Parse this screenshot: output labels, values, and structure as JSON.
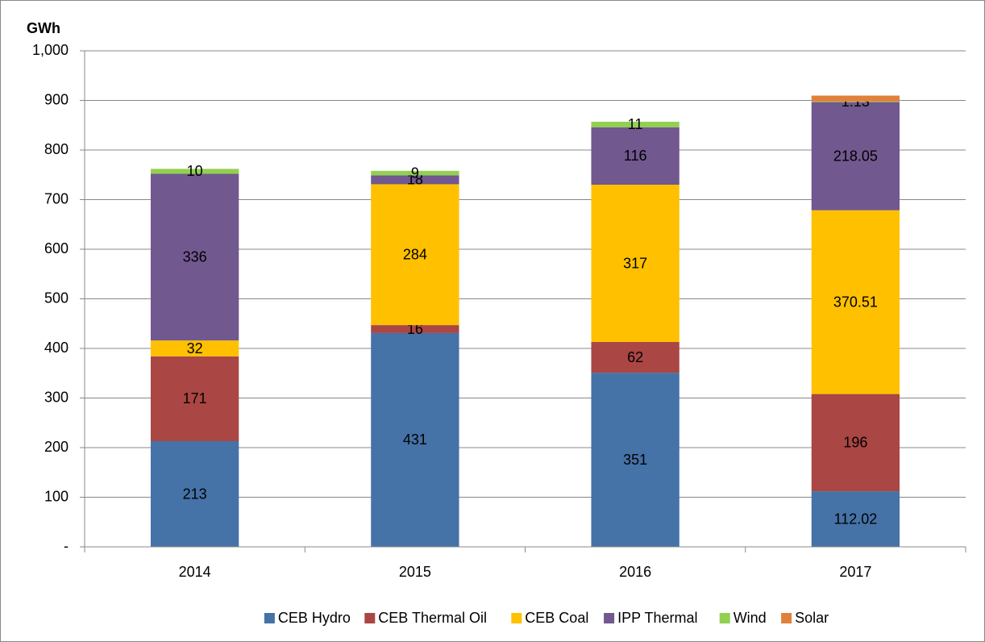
{
  "chart_data": {
    "type": "stacked_bar",
    "y_axis_label": "GWh",
    "categories": [
      "2014",
      "2015",
      "2016",
      "2017"
    ],
    "series": [
      {
        "name": "CEB Hydro",
        "color": "#4572a7",
        "values": [
          213,
          431,
          351,
          112.02
        ]
      },
      {
        "name": "CEB Thermal Oil",
        "color": "#aa4643",
        "values": [
          171,
          16,
          62,
          196
        ]
      },
      {
        "name": "CEB Coal",
        "color": "#ffc000",
        "values": [
          32,
          284,
          317,
          370.51
        ]
      },
      {
        "name": "IPP Thermal",
        "color": "#71588f",
        "values": [
          336,
          18,
          116,
          218.05
        ]
      },
      {
        "name": "Wind",
        "color": "#92d050",
        "values": [
          10,
          9,
          11,
          1.13
        ]
      },
      {
        "name": "Solar",
        "color": "#e0813b",
        "values": [
          null,
          null,
          null,
          12
        ],
        "data_labels": false
      }
    ],
    "ylim": [
      0,
      1000
    ],
    "yticks": [
      {
        "value": 0,
        "label": "-"
      },
      100,
      200,
      300,
      400,
      500,
      600,
      700,
      800,
      900,
      {
        "value": 1000,
        "label": "1,000"
      }
    ],
    "grid": true,
    "legend": "bottom"
  }
}
